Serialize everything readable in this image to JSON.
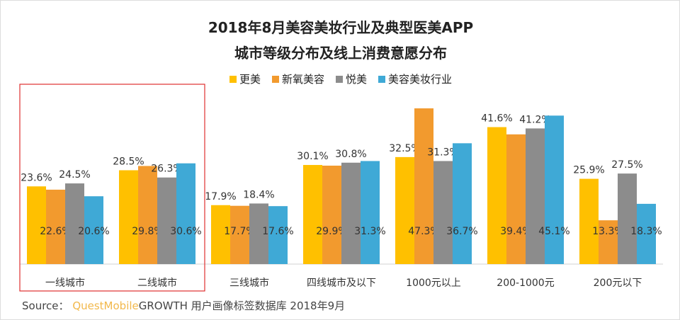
{
  "chart_data": {
    "type": "bar",
    "title": [
      "2018年8月美容美妆行业及典型医美APP",
      "城市等级分布及线上消费意愿分布"
    ],
    "categories": [
      "一线城市",
      "二线城市",
      "三线城市",
      "四线城市及以下",
      "1000元以上",
      "200-1000元",
      "200元以下"
    ],
    "series": [
      {
        "name": "更美",
        "color": "#ffc000",
        "values": [
          23.6,
          28.5,
          17.9,
          30.1,
          32.5,
          41.6,
          25.9
        ]
      },
      {
        "name": "新氧美容",
        "color": "#f29a2e",
        "values": [
          22.6,
          29.8,
          17.7,
          29.9,
          47.3,
          39.4,
          13.3
        ]
      },
      {
        "name": "悦美",
        "color": "#8c8c8c",
        "values": [
          24.5,
          26.3,
          18.4,
          30.8,
          31.3,
          41.2,
          27.5
        ]
      },
      {
        "name": "美容美妆行业",
        "color": "#3fa9d6",
        "values": [
          20.6,
          30.6,
          17.6,
          31.3,
          36.7,
          45.1,
          18.3
        ]
      }
    ],
    "value_suffix": "%",
    "legend": "top",
    "highlight_box_color": "#e03030",
    "highlight_categories": [
      "一线城市",
      "二线城市"
    ]
  },
  "source": {
    "label": "Source：",
    "brand": "QuestMobile",
    "text": "GROWTH 用户画像标签数据库 2018年9月"
  }
}
